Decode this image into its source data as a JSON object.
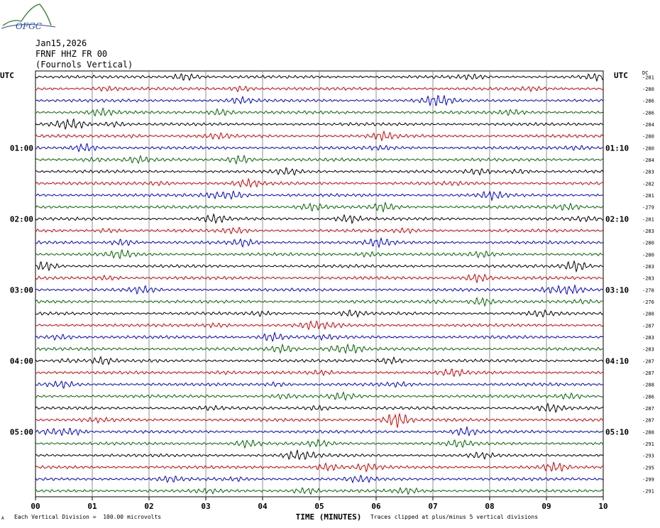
{
  "header": {
    "logo_text": "OFGC",
    "date": "Jan15,2026",
    "station": "FRNF HHZ FR 00",
    "location": "(Fournols Vertical)"
  },
  "axis": {
    "left_unit": "UTC",
    "right_unit": "UTC",
    "dc_label": "DC",
    "xlabel": "TIME (MINUTES)"
  },
  "footer": {
    "scale_note": "Each Vertical Division =  100.00 microvolts",
    "clip_note": "Traces clipped at plus/minus 5 vertical divisions",
    "corner_mark": "A"
  },
  "chart_data": {
    "type": "line",
    "title": "FRNF HHZ FR 00 (Fournols Vertical)",
    "xlabel": "TIME (MINUTES)",
    "xlim": [
      0,
      10
    ],
    "x_ticks": [
      "00",
      "01",
      "02",
      "03",
      "04",
      "05",
      "06",
      "07",
      "08",
      "09",
      "10"
    ],
    "grid": true,
    "minutes_per_line": 10,
    "line_count": 36,
    "colors": [
      "#000000",
      "#cc0000",
      "#0000cc",
      "#006600"
    ],
    "left_time_labels": [
      {
        "line": 6,
        "label": "01:00"
      },
      {
        "line": 12,
        "label": "02:00"
      },
      {
        "line": 18,
        "label": "03:00"
      },
      {
        "line": 24,
        "label": "04:00"
      },
      {
        "line": 30,
        "label": "05:00"
      }
    ],
    "right_time_labels": [
      {
        "line": 6,
        "label": "01:10"
      },
      {
        "line": 12,
        "label": "02:10"
      },
      {
        "line": 18,
        "label": "03:10"
      },
      {
        "line": 24,
        "label": "04:10"
      },
      {
        "line": 30,
        "label": "05:10"
      }
    ],
    "dc_offsets": [
      -281,
      -280,
      -286,
      -286,
      -284,
      -280,
      -280,
      -284,
      -283,
      -282,
      -281,
      -279,
      -281,
      -283,
      -280,
      -280,
      -283,
      -283,
      -278,
      -276,
      -280,
      -287,
      -283,
      -283,
      -287,
      -287,
      -288,
      -286,
      -287,
      -287,
      -288,
      -291,
      -293,
      -295,
      -299,
      -291
    ]
  }
}
